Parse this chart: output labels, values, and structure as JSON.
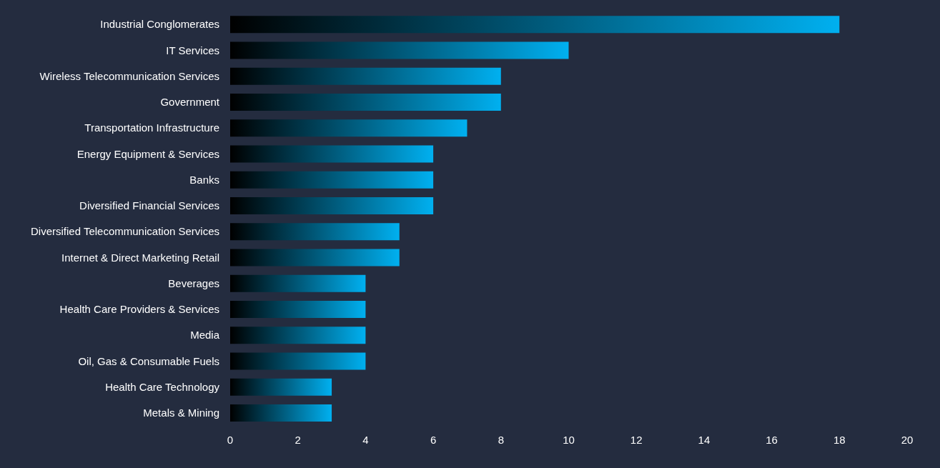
{
  "chart_data": {
    "type": "bar",
    "orientation": "horizontal",
    "categories": [
      "Industrial Conglomerates",
      "IT Services",
      "Wireless Telecommunication Services",
      "Government",
      "Transportation Infrastructure",
      "Energy Equipment & Services",
      "Banks",
      "Diversified Financial Services",
      "Diversified Telecommunication Services",
      "Internet & Direct Marketing Retail",
      "Beverages",
      "Health Care Providers & Services",
      "Media",
      "Oil, Gas & Consumable Fuels",
      "Health Care Technology",
      "Metals & Mining"
    ],
    "values": [
      18,
      10,
      8,
      8,
      7,
      6,
      6,
      6,
      5,
      5,
      4,
      4,
      4,
      4,
      3,
      3
    ],
    "color": "#00b0f0",
    "xlim": [
      0,
      20
    ],
    "xticks": [
      0,
      2,
      4,
      6,
      8,
      10,
      12,
      14,
      16,
      18,
      20
    ]
  }
}
